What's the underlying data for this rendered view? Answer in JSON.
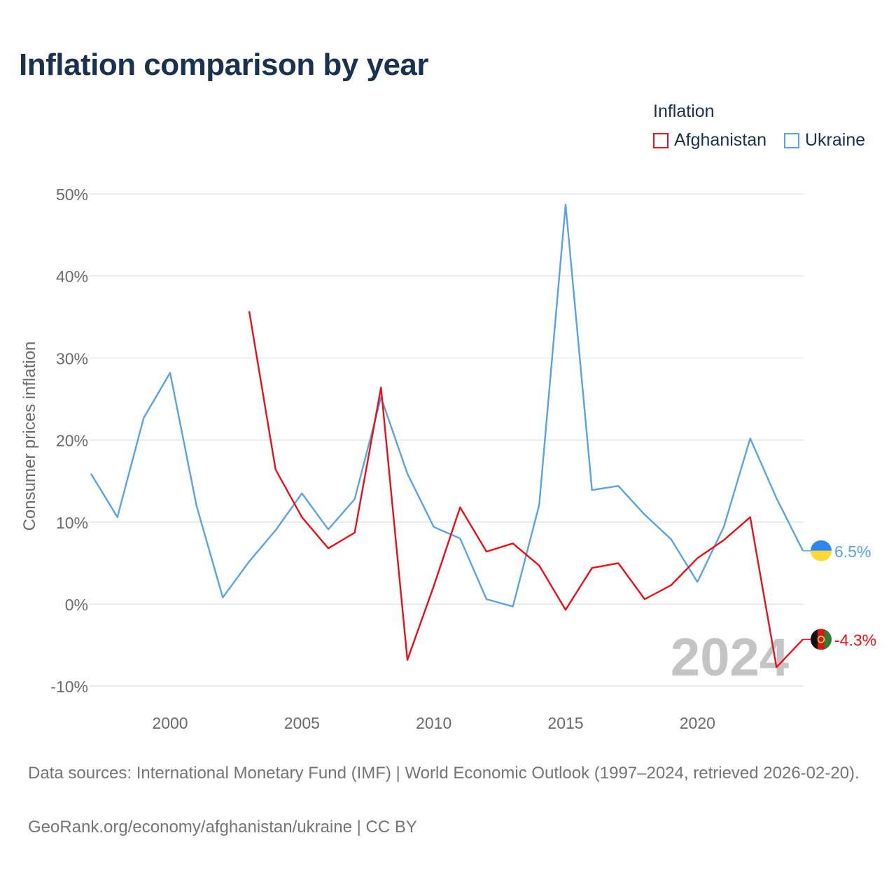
{
  "title": "Inflation comparison by year",
  "legend": {
    "title": "Inflation",
    "items": [
      {
        "label": "Afghanistan",
        "color": "#e8101a"
      },
      {
        "label": "Ukraine",
        "color": "#5ba3e2"
      }
    ]
  },
  "footer": {
    "line1": "Data sources: International Monetary Fund (IMF) | World Economic Outlook (1997–2024, retrieved 2026-02-20).",
    "line2": "GeoRank.org/economy/afghanistan/ukraine | CC BY"
  },
  "chart_data": {
    "type": "line",
    "title": "Inflation comparison by year",
    "xlabel": "",
    "ylabel": "Consumer prices inflation",
    "xlim": [
      1997,
      2024
    ],
    "ylim": [
      -11,
      51
    ],
    "x_ticks": [
      2000,
      2005,
      2010,
      2015,
      2020
    ],
    "x_tick_labels": [
      "2000",
      "2005",
      "2010",
      "2015",
      "2020"
    ],
    "y_ticks": [
      -10,
      0,
      10,
      20,
      30,
      40,
      50
    ],
    "y_tick_labels": [
      "-10%",
      "0%",
      "10%",
      "20%",
      "30%",
      "40%",
      "50%"
    ],
    "grid": true,
    "watermark_year": "2024",
    "series": [
      {
        "name": "Ukraine",
        "color": "#5ba3e2",
        "end_label": "6.5%",
        "flag": "ukraine",
        "x": [
          1997,
          1998,
          1999,
          2000,
          2001,
          2002,
          2003,
          2004,
          2005,
          2006,
          2007,
          2008,
          2009,
          2010,
          2011,
          2012,
          2013,
          2014,
          2015,
          2016,
          2017,
          2018,
          2019,
          2020,
          2021,
          2022,
          2023,
          2024
        ],
        "values": [
          15.9,
          10.6,
          22.7,
          28.2,
          12.0,
          0.8,
          5.2,
          9.0,
          13.5,
          9.1,
          12.8,
          25.2,
          15.9,
          9.4,
          8.0,
          0.6,
          -0.3,
          12.1,
          48.7,
          13.9,
          14.4,
          10.9,
          7.9,
          2.7,
          9.4,
          20.2,
          12.9,
          6.5
        ]
      },
      {
        "name": "Afghanistan",
        "color": "#e8101a",
        "end_label": "-4.3%",
        "flag": "afghanistan",
        "x": [
          2003,
          2004,
          2005,
          2006,
          2007,
          2008,
          2009,
          2010,
          2011,
          2012,
          2013,
          2014,
          2015,
          2016,
          2017,
          2018,
          2019,
          2020,
          2021,
          2022,
          2023,
          2024
        ],
        "values": [
          35.7,
          16.4,
          10.6,
          6.8,
          8.7,
          26.4,
          -6.8,
          2.2,
          11.8,
          6.4,
          7.4,
          4.7,
          -0.7,
          4.4,
          5.0,
          0.6,
          2.3,
          5.6,
          7.8,
          10.6,
          -7.7,
          -4.3
        ]
      }
    ]
  }
}
